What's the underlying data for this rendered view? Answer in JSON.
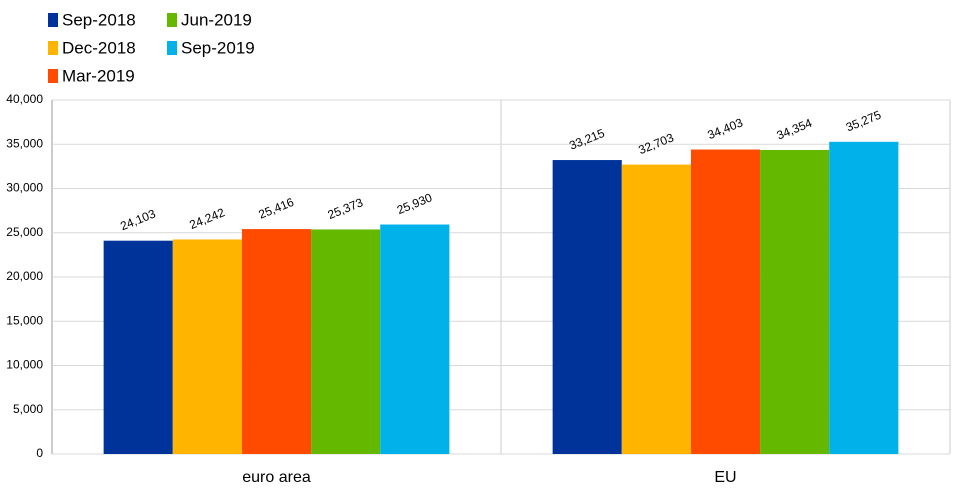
{
  "chart_data": {
    "type": "bar",
    "categories": [
      "euro area",
      "EU"
    ],
    "series": [
      {
        "name": "Sep-2018",
        "color": "#003399",
        "values": [
          24103,
          33215
        ],
        "value_labels": [
          "24,103",
          "33,215"
        ]
      },
      {
        "name": "Dec-2018",
        "color": "#ffb400",
        "values": [
          24242,
          32703
        ],
        "value_labels": [
          "24,242",
          "32,703"
        ]
      },
      {
        "name": "Mar-2019",
        "color": "#ff4b00",
        "values": [
          25416,
          34403
        ],
        "value_labels": [
          "25,416",
          "34,403"
        ]
      },
      {
        "name": "Jun-2019",
        "color": "#65b800",
        "values": [
          25373,
          34354
        ],
        "value_labels": [
          "25,373",
          "34,354"
        ]
      },
      {
        "name": "Sep-2019",
        "color": "#00b1ea",
        "values": [
          25930,
          35275
        ],
        "value_labels": [
          "25,930",
          "35,275"
        ]
      }
    ],
    "ylim": [
      0,
      40000
    ],
    "yticks": [
      0,
      {
        "value": 5000,
        "label": "5,000"
      },
      {
        "value": 10000,
        "label": "10,000"
      },
      {
        "value": 15000,
        "label": "15,000"
      },
      {
        "value": 20000,
        "label": "20,000"
      },
      {
        "value": 25000,
        "label": "25,000"
      },
      {
        "value": 30000,
        "label": "30,000"
      },
      {
        "value": 35000,
        "label": "35,000"
      },
      {
        "value": 40000,
        "label": "40,000"
      }
    ],
    "grid": true
  }
}
